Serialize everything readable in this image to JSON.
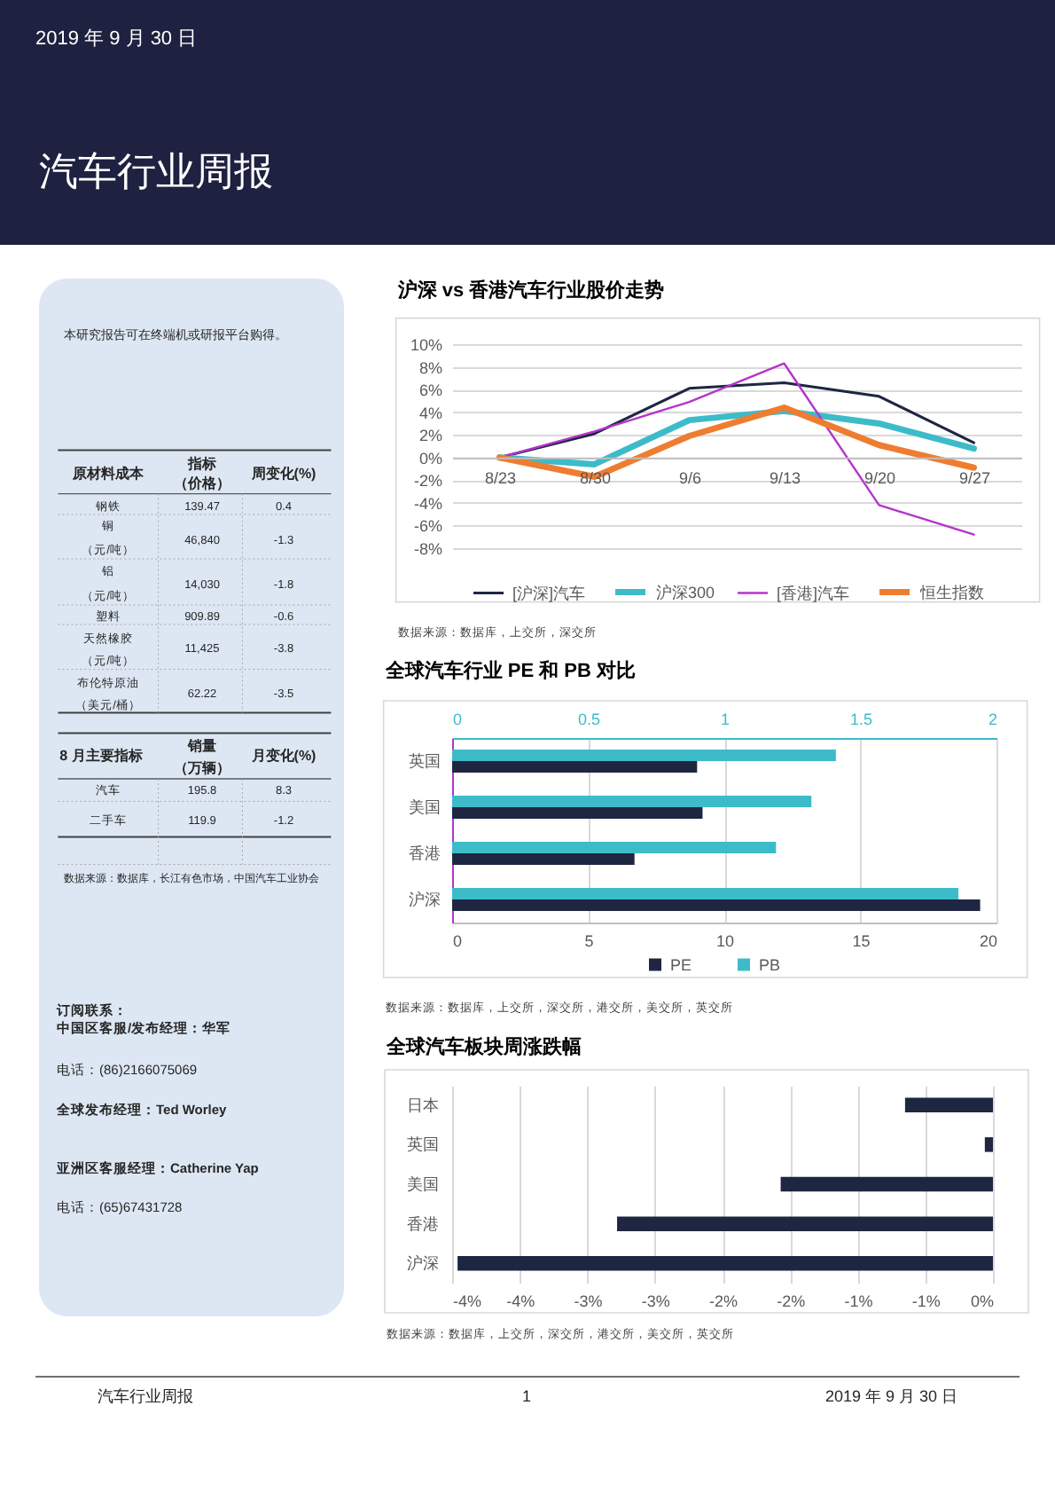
{
  "chart_data": [
    {
      "type": "other",
      "title": "汽车行业周报",
      "annotations": [
        "2019 年 9 月 30 日"
      ]
    },
    {
      "type": "other",
      "annotations": [
        "本研究报告可在终端机或研报平台购得。",
        "原材料成本",
        "指标",
        "（价格）",
        "周变化(%)",
        "钢铁",
        "139.47",
        "0.4",
        "铜",
        "（元/吨）",
        "46,840",
        "-1.3",
        "铝",
        "（元/吨）",
        "14,030",
        "-1.8",
        "塑料",
        "909.89",
        "-0.6",
        "天然橡胶",
        "（元/吨）",
        "11,425",
        "-3.8",
        "布伦特原油",
        "（美元/桶）",
        "62.22",
        "-3.5",
        "8 月主要指标",
        "销量",
        "（万辆）",
        "月变化(%)",
        "汽车",
        "195.8",
        "8.3",
        "二手车",
        "119.9",
        "-1.2",
        "数据来源：数据库，长江有色市场，中国汽车工业协会",
        "订阅联系：",
        "中国区客服/发布经理：华军",
        "电话：(86)2166075069",
        "全球发布经理：Ted Worley",
        "亚洲区客服经理：Catherine Yap",
        "电话：(65)67431728"
      ]
    },
    {
      "type": "line",
      "title": "沪深 vs 香港汽车行业股价走势",
      "categories": [
        "8/23",
        "8/30",
        "9/6",
        "9/13",
        "9/20",
        "9/27"
      ],
      "series": [
        {
          "name": "[沪深]汽车",
          "color": "#1f2642",
          "values": [
            0,
            2.1,
            6.1,
            6.6,
            5.4,
            1.3
          ]
        },
        {
          "name": "沪深300",
          "color": "#3dbbc9",
          "values": [
            0,
            -0.6,
            3.3,
            4.1,
            3.0,
            0.8
          ]
        },
        {
          "name": "[香港]汽车",
          "color": "#b534cc",
          "values": [
            0,
            2.3,
            4.9,
            8.3,
            -4.2,
            -6.8
          ]
        },
        {
          "name": "恒生指数",
          "color": "#ee7d31",
          "values": [
            0,
            -1.7,
            1.9,
            4.4,
            1.1,
            -0.9
          ]
        }
      ],
      "ylim": [
        -8,
        10
      ],
      "yticks": [
        {
          "value": -8,
          "label": "-8%"
        },
        {
          "value": -6,
          "label": "-6%"
        },
        {
          "value": -4,
          "label": "-4%"
        },
        {
          "value": -2,
          "label": "-2%"
        },
        {
          "value": 0,
          "label": "0%"
        },
        {
          "value": 2,
          "label": "2%"
        },
        {
          "value": 4,
          "label": "4%"
        },
        {
          "value": 6,
          "label": "6%"
        },
        {
          "value": 8,
          "label": "8%"
        },
        {
          "value": 10,
          "label": "10%"
        }
      ],
      "grid": "y",
      "legend": "bottom",
      "annotations": [
        "数据来源：数据库，上交所，深交所"
      ]
    },
    {
      "type": "bar",
      "orientation": "horizontal",
      "title": "全球汽车行业 PE 和 PB 对比",
      "categories": [
        "英国",
        "美国",
        "香港",
        "沪深"
      ],
      "series": [
        {
          "name": "PE",
          "color": "#1f2642",
          "values": [
            9.0,
            9.2,
            6.7,
            19.4
          ]
        },
        {
          "name": "PB",
          "color": "#3dbbc9",
          "values": [
            1.41,
            1.32,
            1.19,
            1.86
          ],
          "axis": "x2"
        }
      ],
      "xlim": [
        0,
        20
      ],
      "xticks": [
        0,
        5,
        10,
        15,
        20
      ],
      "x2lim": [
        0,
        2
      ],
      "x2ticks": [
        0,
        0.5,
        1,
        1.5,
        2
      ],
      "grid": "x",
      "legend": "bottom",
      "annotations": [
        "数据来源：数据库，上交所，深交所，港交所，美交所，英交所"
      ]
    },
    {
      "type": "bar",
      "orientation": "horizontal",
      "title": "全球汽车板块周涨跌幅",
      "categories": [
        "日本",
        "英国",
        "美国",
        "香港",
        "沪深"
      ],
      "values": [
        -0.65,
        -0.06,
        -1.57,
        -2.78,
        -3.96
      ],
      "color": "#1f2642",
      "xlim": [
        -4,
        0
      ],
      "xticks": [
        {
          "value": -4,
          "label": "-4%"
        },
        {
          "value": -3.5,
          "label": "-4%"
        },
        {
          "value": -3,
          "label": "-3%"
        },
        {
          "value": -2.5,
          "label": "-3%"
        },
        {
          "value": -2,
          "label": "-2%"
        },
        {
          "value": -1.5,
          "label": "-2%"
        },
        {
          "value": -1,
          "label": "-1%"
        },
        {
          "value": -0.5,
          "label": "-1%"
        },
        {
          "value": 0,
          "label": "0%"
        }
      ],
      "grid": "x",
      "annotations": [
        "数据来源：数据库，上交所，深交所，港交所，美交所，英交所"
      ]
    },
    {
      "type": "other",
      "annotations": [
        "汽车行业周报",
        "1",
        "2019 年 9 月 30 日"
      ]
    }
  ]
}
